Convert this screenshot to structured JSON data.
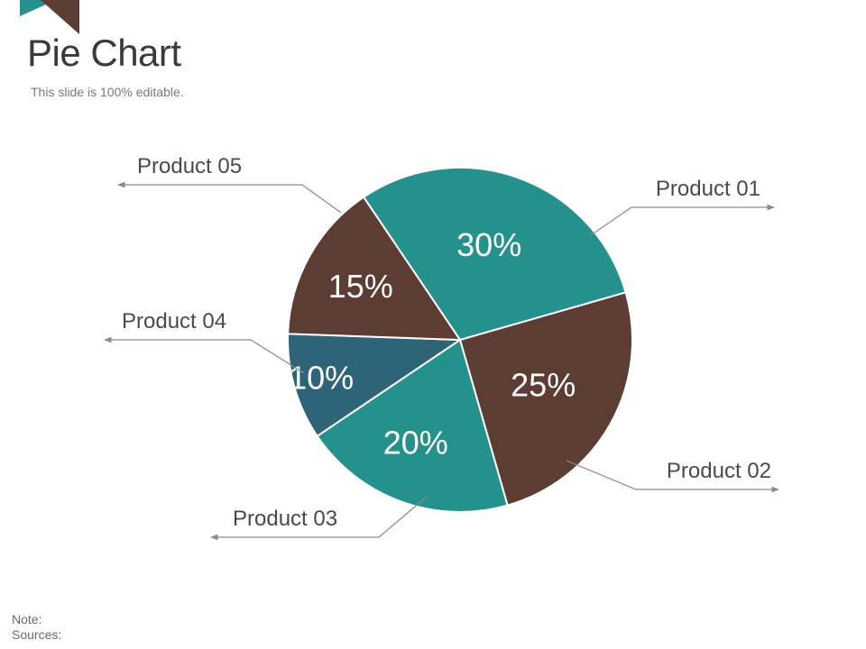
{
  "slide": {
    "title": "Pie Chart",
    "subtitle": "This slide is 100% editable.",
    "note_label": "Note:",
    "sources_label": "Sources:"
  },
  "colors": {
    "teal": "#25918c",
    "brown": "#5c3c33",
    "slate": "#2e6478",
    "text": "#3a3a3a",
    "line": "#8a8a8a",
    "white": "#ffffff"
  },
  "chart_data": {
    "type": "pie",
    "title": "",
    "slices": [
      {
        "label": "Product 01",
        "value": 25,
        "display": "25%",
        "color": "#5c3c33"
      },
      {
        "label": "Product 02",
        "value": 20,
        "display": "20%",
        "color": "#25918c"
      },
      {
        "label": "Product 03",
        "value": 10,
        "display": "10%",
        "color": "#2e6478"
      },
      {
        "label": "Product 04",
        "value": 15,
        "display": "15%",
        "color": "#5c3c33"
      },
      {
        "label": "Product 05",
        "value": 30,
        "display": "30%",
        "color": "#25918c"
      }
    ],
    "legend": "callouts"
  }
}
